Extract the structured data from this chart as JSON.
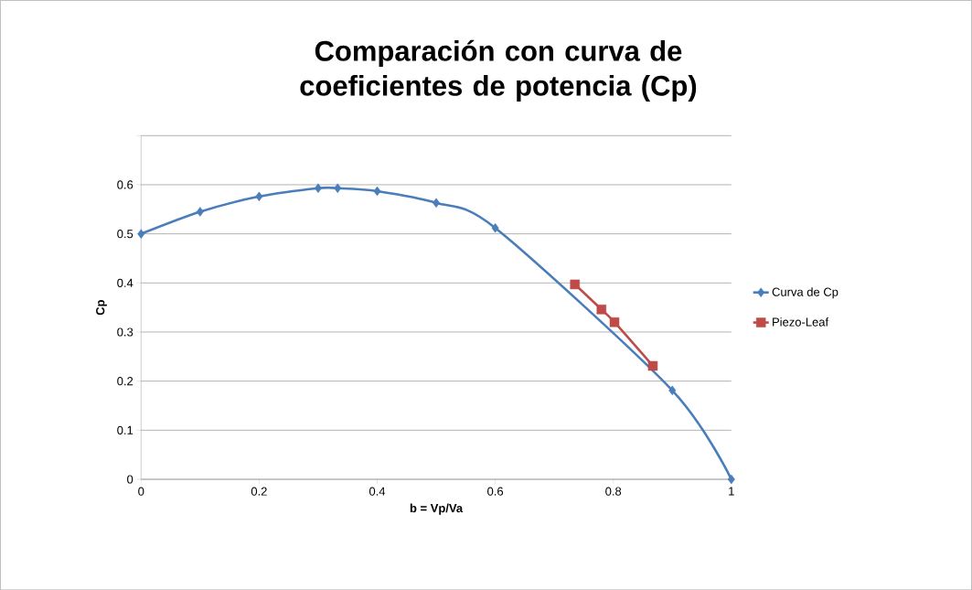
{
  "chart_data": {
    "type": "line",
    "title": "Comparación con curva de coeficientes de potencia (Cp)",
    "xlabel": "b = Vp/Va",
    "ylabel": "Cp",
    "series": [
      {
        "name": "Curva de Cp",
        "color": "#4a7ebb",
        "marker": "diamond",
        "x": [
          0,
          0.1,
          0.2,
          0.3,
          0.333,
          0.4,
          0.5,
          0.6,
          0.9,
          1
        ],
        "values": [
          0.5,
          0.545,
          0.576,
          0.593,
          0.593,
          0.587,
          0.563,
          0.512,
          0.181,
          0
        ]
      },
      {
        "name": "Piezo-Leaf",
        "color": "#be4b48",
        "marker": "square",
        "x": [
          0.735,
          0.78,
          0.802,
          0.867
        ],
        "values": [
          0.397,
          0.346,
          0.32,
          0.231
        ]
      }
    ],
    "xlim": [
      0,
      1
    ],
    "ylim": [
      0,
      0.7
    ],
    "xticks": [
      0,
      0.2,
      0.4,
      0.6,
      0.8,
      1
    ],
    "yticks": [
      0,
      0.1,
      0.2,
      0.3,
      0.4,
      0.5,
      0.6,
      {
        "value": 0.7,
        "label": null
      }
    ],
    "grid": "y",
    "legend": "right"
  }
}
